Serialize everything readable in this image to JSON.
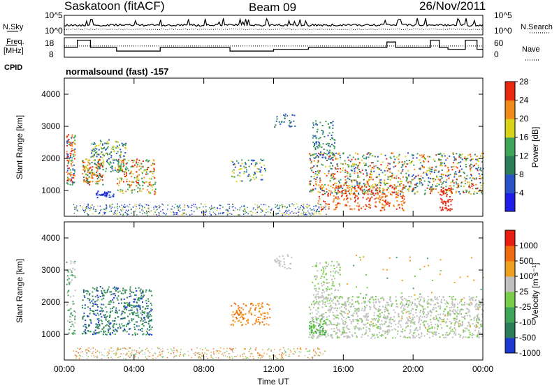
{
  "header": {
    "station": "Saskatoon (fitACF)",
    "beam": "Beam 09",
    "date": "26/Nov/2011"
  },
  "left_labels": {
    "nsky": "N.Sky",
    "freq_line1": "Freq.",
    "freq_line2": "[MHz]",
    "cpid": "CPID"
  },
  "right_labels": {
    "nsearch": "N.Search",
    "nave": "Nave"
  },
  "cpid_text": "normalsound (fast) -157",
  "chart_data": [
    {
      "type": "line",
      "name": "noise-panel",
      "left_ticks": [
        "10^5",
        "10^0"
      ],
      "right_ticks": [
        "10^5",
        "10^0"
      ],
      "series": [
        {
          "name": "N.Sky",
          "style": "solid"
        },
        {
          "name": "N.Search",
          "style": "dotted"
        }
      ]
    },
    {
      "type": "line",
      "name": "frequency-panel",
      "left_ticks": [
        "18",
        "8"
      ],
      "right_ticks": [
        "60",
        "0"
      ],
      "freq_ylim": [
        8,
        18
      ],
      "nave_ylim": [
        0,
        60
      ],
      "x": [
        "00:00",
        "00:45",
        "01:30",
        "03:00",
        "05:30",
        "09:30",
        "12:00",
        "14:00",
        "15:30",
        "18:00",
        "18:30",
        "19:00",
        "21:00",
        "21:30",
        "22:00",
        "23:00",
        "23:40",
        "00:00"
      ],
      "series": [
        {
          "name": "Freq.",
          "style": "solid",
          "values": [
            13,
            17,
            13,
            11,
            13,
            11,
            12,
            13,
            13,
            13,
            16,
            13,
            17,
            13,
            12,
            17,
            12,
            12
          ]
        },
        {
          "name": "Nave",
          "style": "dotted",
          "values": [
            35,
            35,
            35,
            35,
            35,
            35,
            35,
            35,
            35,
            35,
            35,
            35,
            35,
            35,
            35,
            35,
            35,
            35
          ]
        }
      ]
    },
    {
      "type": "heatmap",
      "name": "power-panel",
      "ylabel": "Slant Range [km]",
      "ylim": [
        200,
        4500
      ],
      "yticks": [
        1000,
        2000,
        3000,
        4000
      ],
      "xlim": [
        "00:00",
        "24:00"
      ],
      "xticks": [
        "00:00",
        "04:00",
        "08:00",
        "12:00",
        "16:00",
        "20:00",
        "00:00"
      ],
      "colorbar_label": "Power [dB]",
      "colorbar_ticks": [
        "4",
        "8",
        "12",
        "16",
        "20",
        "24",
        "28"
      ],
      "colorbar_range": [
        0,
        32
      ],
      "colors": [
        "#1e1ee6",
        "#2a53c8",
        "#2e7d5a",
        "#3fa55a",
        "#d8d21a",
        "#f08a1a",
        "#e82810"
      ]
    },
    {
      "type": "heatmap",
      "name": "velocity-panel",
      "ylabel": "Slant Range [km]",
      "ylim": [
        200,
        4500
      ],
      "yticks": [
        1000,
        2000,
        3000,
        4000
      ],
      "xlim": [
        "00:00",
        "24:00"
      ],
      "xticks": [
        "00:00",
        "04:00",
        "08:00",
        "12:00",
        "16:00",
        "20:00",
        "00:00"
      ],
      "xlabel": "Time UT",
      "colorbar_label": "Velocity [m s⁻¹]",
      "colorbar_ticks": [
        "1000",
        "500",
        "100",
        "25",
        "-25",
        "-100",
        "-500",
        "-1000"
      ],
      "colors": [
        "#1e3ad0",
        "#2e7d5a",
        "#3fa55a",
        "#7acd4a",
        "#c0c0c0",
        "#f0a020",
        "#f06a10",
        "#e81e10"
      ]
    }
  ]
}
